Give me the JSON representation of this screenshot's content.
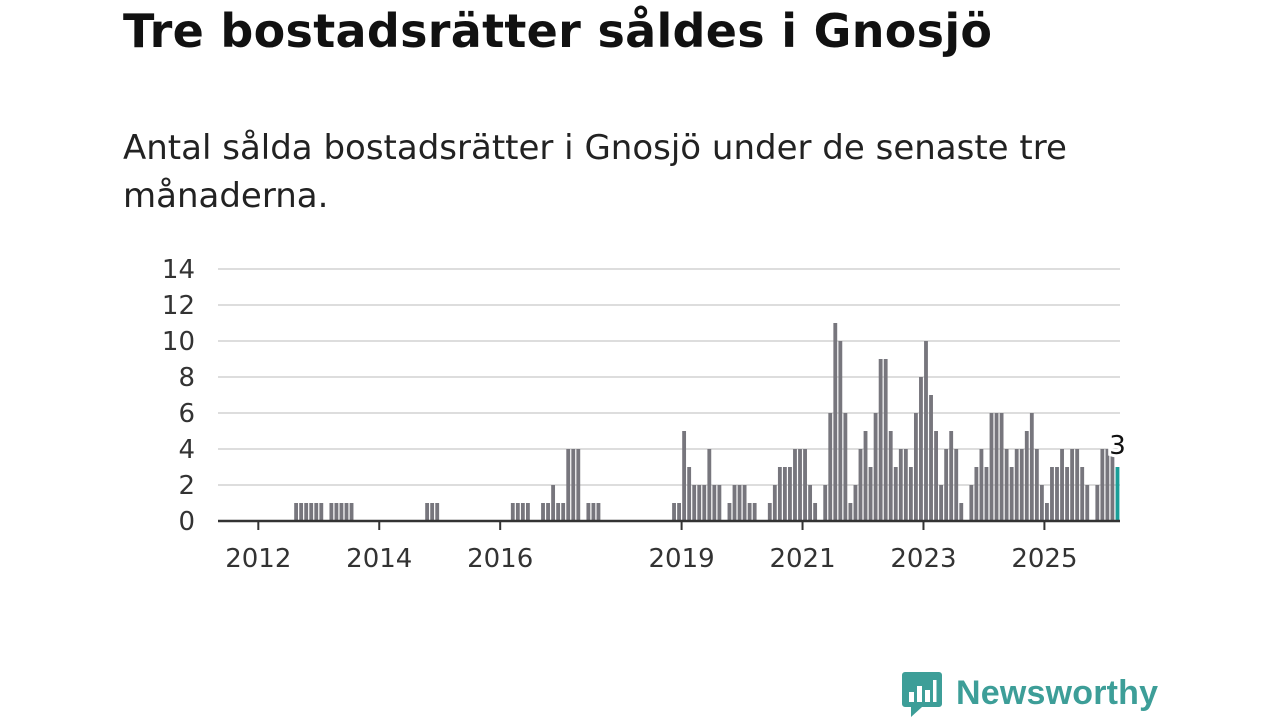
{
  "title": "Tre bostadsrätter såldes i Gnosjö",
  "subtitle": "Antal sålda bostadsrätter i Gnosjö under de senaste tre månaderna.",
  "brand": {
    "name": "Newsworthy",
    "icon": "newsworthy-logo-icon"
  },
  "colors": {
    "bar": "#77767d",
    "highlight": "#1a9e98",
    "grid": "#dddddd",
    "axis": "#333333",
    "brand": "#3d9e98"
  },
  "chart_data": {
    "type": "bar",
    "title": "",
    "xlabel": "",
    "ylabel": "",
    "ylim": [
      0,
      14
    ],
    "yticks": [
      0,
      2,
      4,
      6,
      8,
      10,
      12,
      14
    ],
    "xticks": [
      "2012",
      "2014",
      "2016",
      "2019",
      "2021",
      "2023",
      "2025"
    ],
    "x_range": [
      "2011-05",
      "2025-12"
    ],
    "grid": true,
    "highlight_label": "3",
    "series": [
      {
        "values": [
          0,
          0,
          0,
          0,
          0,
          0,
          0,
          0,
          0,
          0,
          0,
          0,
          0,
          0,
          0,
          1,
          1,
          1,
          1,
          1,
          1,
          0,
          1,
          1,
          1,
          1,
          1,
          0,
          0,
          0,
          0,
          0,
          0,
          0,
          0,
          0,
          0,
          0,
          0,
          0,
          0,
          1,
          1,
          1,
          0,
          0,
          0,
          0,
          0,
          0,
          0,
          0,
          0,
          0,
          0,
          0,
          0,
          0,
          1,
          1,
          1,
          1,
          0,
          0,
          1,
          1,
          2,
          1,
          1,
          4,
          4,
          4,
          0,
          1,
          1,
          1,
          0,
          0,
          0,
          0,
          0,
          0,
          0,
          0,
          0,
          0,
          0,
          0,
          0,
          0,
          1,
          1,
          5,
          3,
          2,
          2,
          2,
          4,
          2,
          2,
          0,
          1,
          2,
          2,
          2,
          1,
          1,
          0,
          0,
          1,
          2,
          3,
          3,
          3,
          4,
          4,
          4,
          2,
          1,
          0,
          2,
          6,
          11,
          10,
          6,
          1,
          2,
          4,
          5,
          3,
          6,
          9,
          9,
          5,
          3,
          4,
          4,
          3,
          6,
          8,
          10,
          7,
          5,
          2,
          4,
          5,
          4,
          1,
          0,
          2,
          3,
          4,
          3,
          6,
          6,
          6,
          4,
          3,
          4,
          4,
          5,
          6,
          4,
          2,
          1,
          3,
          3,
          4,
          3,
          4,
          4,
          3,
          2,
          0,
          2,
          4,
          4,
          4,
          3
        ]
      }
    ]
  }
}
